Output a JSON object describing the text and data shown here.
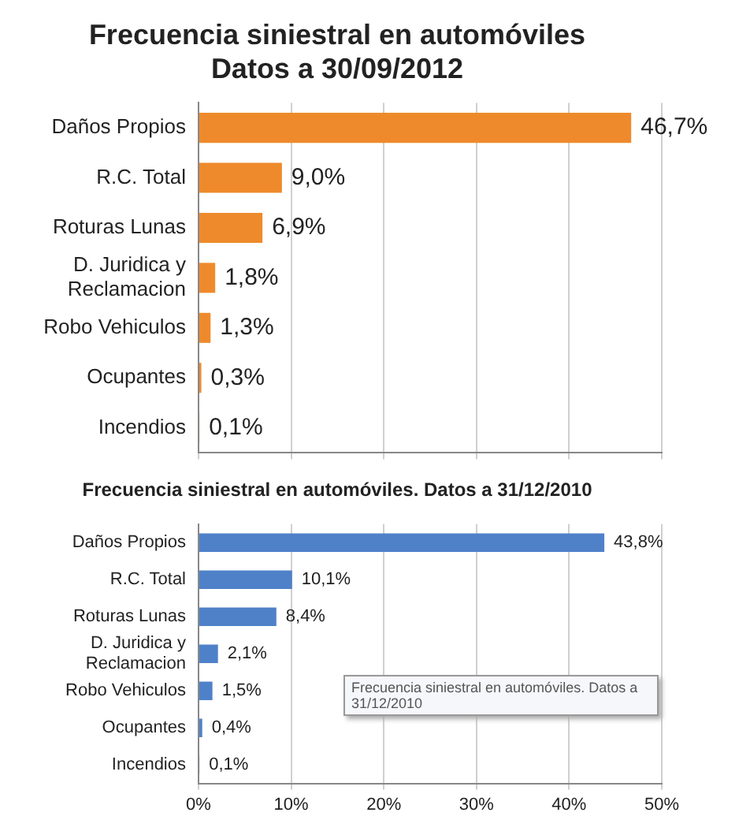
{
  "chart_data": [
    {
      "type": "bar",
      "orientation": "horizontal",
      "title": "Frecuencia siniestral en automóviles",
      "subtitle": "Datos a 30/09/2012",
      "categories": [
        "Daños Propios",
        "R.C. Total",
        "Roturas Lunas",
        "D. Juridica y Reclamacion",
        "Robo Vehiculos",
        "Ocupantes",
        "Incendios"
      ],
      "values": [
        46.7,
        9.0,
        6.9,
        1.8,
        1.3,
        0.3,
        0.1
      ],
      "value_labels": [
        "46,7%",
        "9,0%",
        "6,9%",
        "1,8%",
        "1,3%",
        "0,3%",
        "0,1%"
      ],
      "color": "#ee8a2c",
      "xlim": [
        0,
        50
      ],
      "xticks": [
        {
          "value": 0,
          "label": null
        },
        {
          "value": 10,
          "label": null
        },
        {
          "value": 20,
          "label": null
        },
        {
          "value": 30,
          "label": null
        },
        {
          "value": 40,
          "label": null
        },
        {
          "value": 50,
          "label": null
        }
      ],
      "tick_labels": "y",
      "grid": "x",
      "legend": false
    },
    {
      "type": "bar",
      "orientation": "horizontal",
      "title": "Frecuencia siniestral en automóviles. Datos a 31/12/2010",
      "categories": [
        "Daños Propios",
        "R.C. Total",
        "Roturas Lunas",
        "D. Juridica y Reclamacion",
        "Robo Vehiculos",
        "Ocupantes",
        "Incendios"
      ],
      "values": [
        43.8,
        10.1,
        8.4,
        2.1,
        1.5,
        0.4,
        0.1
      ],
      "value_labels": [
        "43,8%",
        "10,1%",
        "8,4%",
        "2,1%",
        "1,5%",
        "0,4%",
        "0,1%"
      ],
      "color": "#4f81c9",
      "xlim": [
        0,
        50
      ],
      "xticks": [
        {
          "value": 0,
          "label": "0%"
        },
        {
          "value": 10,
          "label": "10%"
        },
        {
          "value": 20,
          "label": "20%"
        },
        {
          "value": 30,
          "label": "30%"
        },
        {
          "value": 40,
          "label": "40%"
        },
        {
          "value": 50,
          "label": "50%"
        }
      ],
      "grid": "x",
      "legend": false,
      "annotations": [
        "Frecuencia siniestral en automóviles. Datos a 31/12/2010"
      ]
    }
  ]
}
